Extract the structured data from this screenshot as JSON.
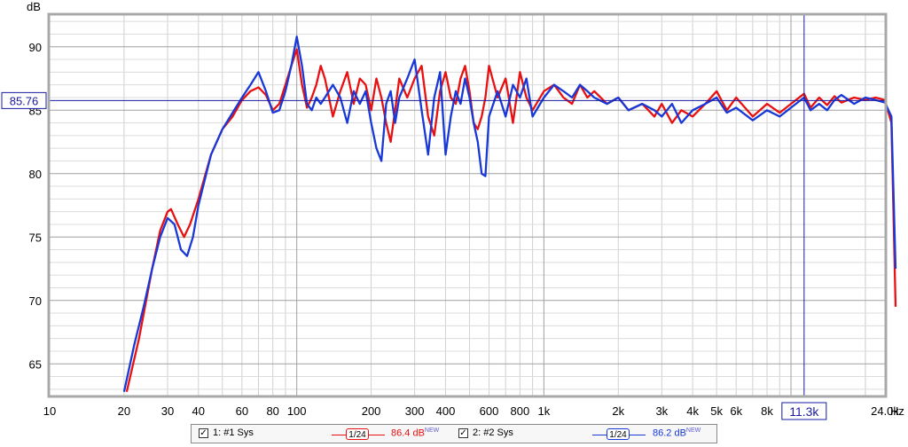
{
  "chart_data": {
    "type": "line",
    "title": "",
    "ylabel": "dB",
    "xlabel": "Hz",
    "x_scale": "log",
    "xlim": [
      10,
      24000
    ],
    "ylim": [
      62.5,
      92.5
    ],
    "x_ticks": [
      {
        "v": 10,
        "label": "10"
      },
      {
        "v": 20,
        "label": "20"
      },
      {
        "v": 30,
        "label": "30"
      },
      {
        "v": 40,
        "label": "40"
      },
      {
        "v": 60,
        "label": "60"
      },
      {
        "v": 80,
        "label": "80"
      },
      {
        "v": 100,
        "label": "100"
      },
      {
        "v": 200,
        "label": "200"
      },
      {
        "v": 300,
        "label": "300"
      },
      {
        "v": 400,
        "label": "400"
      },
      {
        "v": 600,
        "label": "600"
      },
      {
        "v": 800,
        "label": "800"
      },
      {
        "v": 1000,
        "label": "1k"
      },
      {
        "v": 2000,
        "label": "2k"
      },
      {
        "v": 3000,
        "label": "3k"
      },
      {
        "v": 4000,
        "label": "4k"
      },
      {
        "v": 5000,
        "label": "5k"
      },
      {
        "v": 6000,
        "label": "6k"
      },
      {
        "v": 8000,
        "label": "8k"
      },
      {
        "v": 24000,
        "label": "24.0k"
      }
    ],
    "y_ticks": [
      65,
      70,
      75,
      80,
      85,
      90
    ],
    "grid": true,
    "cursor": {
      "x": 11300,
      "x_label": "11.3k",
      "y": 85.76,
      "y_label": "85.76"
    },
    "series": [
      {
        "name": "1: #1 Sys",
        "color": "#e81010",
        "x": [
          20.5,
          23,
          26,
          28,
          30,
          31,
          33,
          35,
          37,
          40,
          45,
          50,
          55,
          60,
          65,
          70,
          75,
          80,
          85,
          90,
          95,
          100,
          105,
          110,
          115,
          120,
          125,
          130,
          135,
          140,
          150,
          160,
          170,
          180,
          190,
          200,
          210,
          220,
          230,
          240,
          250,
          260,
          280,
          300,
          320,
          340,
          360,
          380,
          400,
          420,
          440,
          460,
          480,
          500,
          520,
          540,
          560,
          580,
          600,
          650,
          700,
          750,
          800,
          850,
          900,
          1000,
          1100,
          1200,
          1300,
          1400,
          1500,
          1600,
          1800,
          2000,
          2200,
          2500,
          2800,
          3000,
          3300,
          3600,
          4000,
          4500,
          5000,
          5500,
          6000,
          7000,
          8000,
          9000,
          10000,
          11300,
          12000,
          13000,
          14000,
          15000,
          16000,
          18000,
          20000,
          22000,
          24000,
          25500,
          26500
        ],
        "y": [
          62.8,
          67.0,
          72.5,
          75.5,
          77.0,
          77.2,
          76.0,
          75.0,
          76.0,
          78.0,
          81.5,
          83.5,
          84.5,
          85.8,
          86.5,
          86.8,
          86.2,
          85.0,
          85.5,
          87.0,
          88.5,
          89.8,
          87.0,
          85.2,
          86.0,
          87.0,
          88.5,
          87.5,
          86.0,
          84.5,
          86.5,
          88.0,
          85.5,
          87.5,
          87.0,
          85.0,
          87.5,
          86.0,
          84.0,
          82.5,
          85.0,
          87.5,
          86.0,
          87.5,
          88.5,
          84.5,
          83.0,
          86.5,
          88.0,
          86.0,
          85.5,
          87.5,
          88.5,
          86.5,
          84.0,
          83.5,
          84.5,
          86.0,
          88.5,
          86.0,
          87.5,
          84.0,
          88.0,
          86.0,
          85.0,
          86.5,
          87.0,
          86.0,
          85.5,
          87.0,
          86.0,
          86.5,
          85.5,
          86.0,
          85.0,
          85.5,
          84.5,
          85.5,
          84.0,
          85.0,
          84.5,
          85.5,
          86.5,
          85.0,
          86.0,
          84.5,
          85.5,
          84.8,
          85.5,
          86.3,
          85.2,
          86.0,
          85.4,
          86.1,
          85.6,
          86.0,
          85.8,
          86.0,
          85.8,
          84.0,
          69.5
        ]
      },
      {
        "name": "2: #2 Sys",
        "color": "#1838d8",
        "x": [
          20,
          22,
          24,
          26,
          28,
          30,
          32,
          34,
          36,
          38,
          40,
          45,
          50,
          55,
          60,
          65,
          70,
          75,
          80,
          85,
          90,
          95,
          100,
          105,
          110,
          115,
          120,
          125,
          130,
          140,
          150,
          160,
          170,
          180,
          190,
          200,
          210,
          220,
          230,
          240,
          250,
          260,
          280,
          300,
          320,
          340,
          360,
          380,
          400,
          420,
          440,
          460,
          480,
          500,
          520,
          540,
          560,
          580,
          600,
          650,
          700,
          750,
          800,
          850,
          900,
          1000,
          1100,
          1200,
          1300,
          1400,
          1500,
          1600,
          1800,
          2000,
          2200,
          2500,
          2800,
          3000,
          3300,
          3600,
          4000,
          4500,
          5000,
          5500,
          6000,
          7000,
          8000,
          9000,
          10000,
          11300,
          12000,
          13000,
          14000,
          15000,
          16000,
          18000,
          20000,
          22000,
          24000,
          25500,
          26500
        ],
        "y": [
          62.8,
          66.5,
          69.5,
          72.5,
          75.0,
          76.5,
          76.0,
          74.0,
          73.5,
          75.0,
          77.5,
          81.5,
          83.5,
          84.8,
          86.0,
          87.0,
          88.0,
          86.5,
          84.8,
          85.0,
          86.5,
          88.5,
          90.8,
          88.5,
          85.5,
          85.0,
          86.0,
          85.5,
          86.0,
          87.0,
          86.0,
          84.0,
          86.5,
          85.5,
          86.5,
          84.0,
          82.0,
          81.0,
          85.5,
          86.5,
          84.0,
          86.0,
          87.5,
          89.0,
          85.0,
          81.5,
          86.0,
          88.0,
          81.5,
          84.5,
          86.5,
          85.5,
          87.5,
          86.0,
          84.0,
          82.5,
          80.0,
          79.8,
          84.5,
          86.5,
          84.5,
          87.0,
          86.0,
          87.5,
          84.5,
          86.0,
          87.0,
          86.5,
          86.0,
          87.0,
          86.5,
          86.0,
          85.5,
          86.0,
          85.0,
          85.5,
          85.0,
          84.5,
          85.5,
          84.0,
          85.0,
          85.5,
          86.0,
          84.8,
          85.2,
          84.2,
          85.0,
          84.5,
          85.2,
          86.0,
          85.0,
          85.5,
          85.0,
          85.8,
          86.2,
          85.5,
          86.0,
          85.8,
          85.6,
          84.5,
          72.5
        ]
      }
    ]
  },
  "legend": [
    {
      "label": "1: #1 Sys",
      "smoothing": "1/24",
      "level": "86.4 dB",
      "badge": "NEW",
      "color": "#e81010"
    },
    {
      "label": "2: #2 Sys",
      "smoothing": "1/24",
      "level": "86.2 dB",
      "badge": "NEW",
      "color": "#1838d8"
    }
  ]
}
